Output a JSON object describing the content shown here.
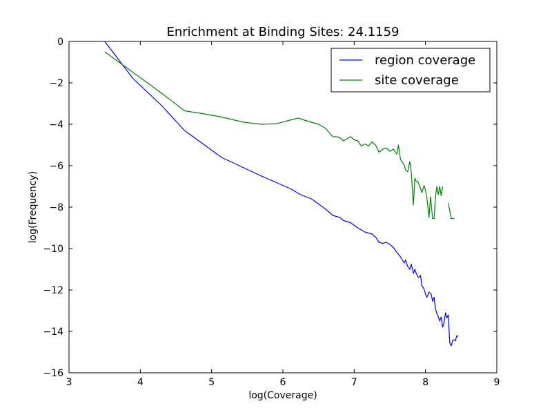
{
  "chart_data": {
    "type": "line",
    "title": "Enrichment at Binding Sites: 24.1159",
    "xlabel": "log(Coverage)",
    "ylabel": "log(Frequency)",
    "xlim": [
      3,
      9
    ],
    "ylim": [
      -16,
      0
    ],
    "xticks": [
      3,
      4,
      5,
      6,
      7,
      8,
      9
    ],
    "yticks": [
      0,
      -2,
      -4,
      -6,
      -8,
      -10,
      -12,
      -14,
      -16
    ],
    "xtick_labels": [
      "3",
      "4",
      "5",
      "6",
      "7",
      "8",
      "9"
    ],
    "ytick_labels": [
      "0",
      "−2",
      "−4",
      "−6",
      "−8",
      "−10",
      "−12",
      "−14",
      "−16"
    ],
    "grid": false,
    "legend": {
      "position": "top-right",
      "entries": [
        "region coverage",
        "site coverage"
      ]
    },
    "series": [
      {
        "name": "region coverage",
        "color": "#0000ff",
        "x": [
          3.5,
          3.9,
          4.3,
          4.62,
          4.9,
          5.14,
          5.45,
          5.7,
          5.9,
          6.1,
          6.25,
          6.4,
          6.48,
          6.6,
          6.7,
          6.8,
          6.85,
          6.95,
          7.05,
          7.15,
          7.25,
          7.3,
          7.35,
          7.4,
          7.45,
          7.5,
          7.55,
          7.6,
          7.65,
          7.7,
          7.72,
          7.75,
          7.78,
          7.8,
          7.83,
          7.85,
          7.87,
          7.9,
          7.93,
          7.95,
          7.98,
          8.0,
          8.02,
          8.05,
          8.08,
          8.1,
          8.12,
          8.14,
          8.16,
          8.18,
          8.2,
          8.22,
          8.24,
          8.26,
          8.28,
          8.3,
          8.32,
          8.34,
          8.36,
          8.38,
          8.4,
          8.42,
          8.44,
          8.46
        ],
        "y": [
          0.0,
          -1.8,
          -3.1,
          -4.3,
          -5.0,
          -5.6,
          -6.1,
          -6.5,
          -6.8,
          -7.1,
          -7.4,
          -7.6,
          -7.8,
          -8.1,
          -8.4,
          -8.5,
          -8.65,
          -8.75,
          -9.0,
          -9.2,
          -9.3,
          -9.45,
          -9.7,
          -9.75,
          -9.7,
          -9.8,
          -9.95,
          -10.2,
          -10.4,
          -10.7,
          -10.55,
          -10.85,
          -11.0,
          -10.75,
          -11.2,
          -11.0,
          -11.2,
          -11.4,
          -11.3,
          -11.8,
          -11.95,
          -12.2,
          -12.35,
          -12.1,
          -12.2,
          -12.55,
          -12.35,
          -12.9,
          -13.15,
          -13.3,
          -13.5,
          -13.3,
          -13.8,
          -13.6,
          -13.1,
          -13.35,
          -13.2,
          -14.55,
          -14.7,
          -14.45,
          -14.4,
          -14.45,
          -14.2,
          -14.25
        ]
      },
      {
        "name": "site coverage",
        "color": "#008000",
        "x": [
          3.5,
          3.9,
          4.3,
          4.62,
          4.9,
          5.14,
          5.45,
          5.7,
          5.9,
          6.1,
          6.22,
          6.3,
          6.4,
          6.5,
          6.6,
          6.7,
          6.75,
          6.8,
          6.85,
          6.9,
          6.95,
          7.0,
          7.05,
          7.1,
          7.15,
          7.2,
          7.25,
          7.3,
          7.35,
          7.4,
          7.45,
          7.5,
          7.55,
          7.6,
          7.62,
          7.65,
          7.7,
          7.72,
          7.75,
          7.78,
          7.8,
          7.83,
          7.85,
          7.87,
          7.89,
          7.92,
          7.95,
          7.98,
          8.0,
          8.02,
          8.05,
          8.07,
          8.1,
          8.12,
          8.14,
          8.16,
          8.18,
          8.2,
          8.22,
          8.24
        ],
        "y": [
          -0.5,
          -1.5,
          -2.5,
          -3.35,
          -3.5,
          -3.65,
          -3.9,
          -4.0,
          -3.98,
          -3.8,
          -3.7,
          -3.8,
          -3.9,
          -4.0,
          -4.2,
          -4.6,
          -4.6,
          -4.65,
          -4.8,
          -4.7,
          -4.6,
          -4.75,
          -4.8,
          -5.05,
          -4.95,
          -5.05,
          -4.85,
          -5.0,
          -5.35,
          -5.2,
          -5.15,
          -5.3,
          -5.2,
          -5.45,
          -5.0,
          -5.7,
          -5.95,
          -6.2,
          -6.3,
          -5.8,
          -6.3,
          -7.9,
          -6.6,
          -6.75,
          -6.75,
          -7.0,
          -7.3,
          -6.95,
          -7.2,
          -7.55,
          -8.5,
          -7.5,
          -8.55,
          -8.55,
          -7.5,
          -7.0,
          -7.4,
          -7.0,
          -7.45,
          -7.0
        ]
      },
      {
        "name": "site coverage",
        "color": "#008000",
        "x": [
          8.32,
          8.36,
          8.4
        ],
        "y": [
          -7.8,
          -8.55,
          -8.55
        ]
      }
    ]
  }
}
